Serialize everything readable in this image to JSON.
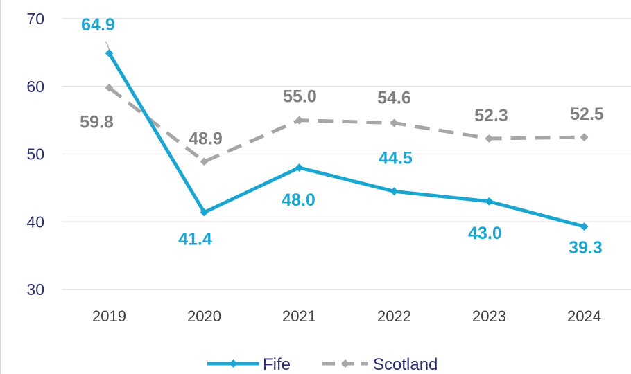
{
  "chart_data": {
    "type": "line",
    "categories": [
      "2019",
      "2020",
      "2021",
      "2022",
      "2023",
      "2024"
    ],
    "yticks": [
      "30",
      "40",
      "50",
      "60",
      "70"
    ],
    "ylim": [
      30,
      70
    ],
    "grid": true,
    "legend_position": "bottom",
    "series": [
      {
        "name": "Fife",
        "values": [
          64.9,
          41.4,
          48.0,
          44.5,
          43.0,
          39.3
        ],
        "labels": [
          "64.9",
          "41.4",
          "48.0",
          "44.5",
          "43.0",
          "39.3"
        ],
        "color": "#1aa6d1",
        "style": "solid"
      },
      {
        "name": "Scotland",
        "values": [
          59.8,
          48.9,
          55.0,
          54.6,
          52.3,
          52.5
        ],
        "labels": [
          "59.8",
          "48.9",
          "55.0",
          "54.6",
          "52.3",
          "52.5"
        ],
        "color": "#a6a6a6",
        "style": "dashed"
      }
    ]
  }
}
